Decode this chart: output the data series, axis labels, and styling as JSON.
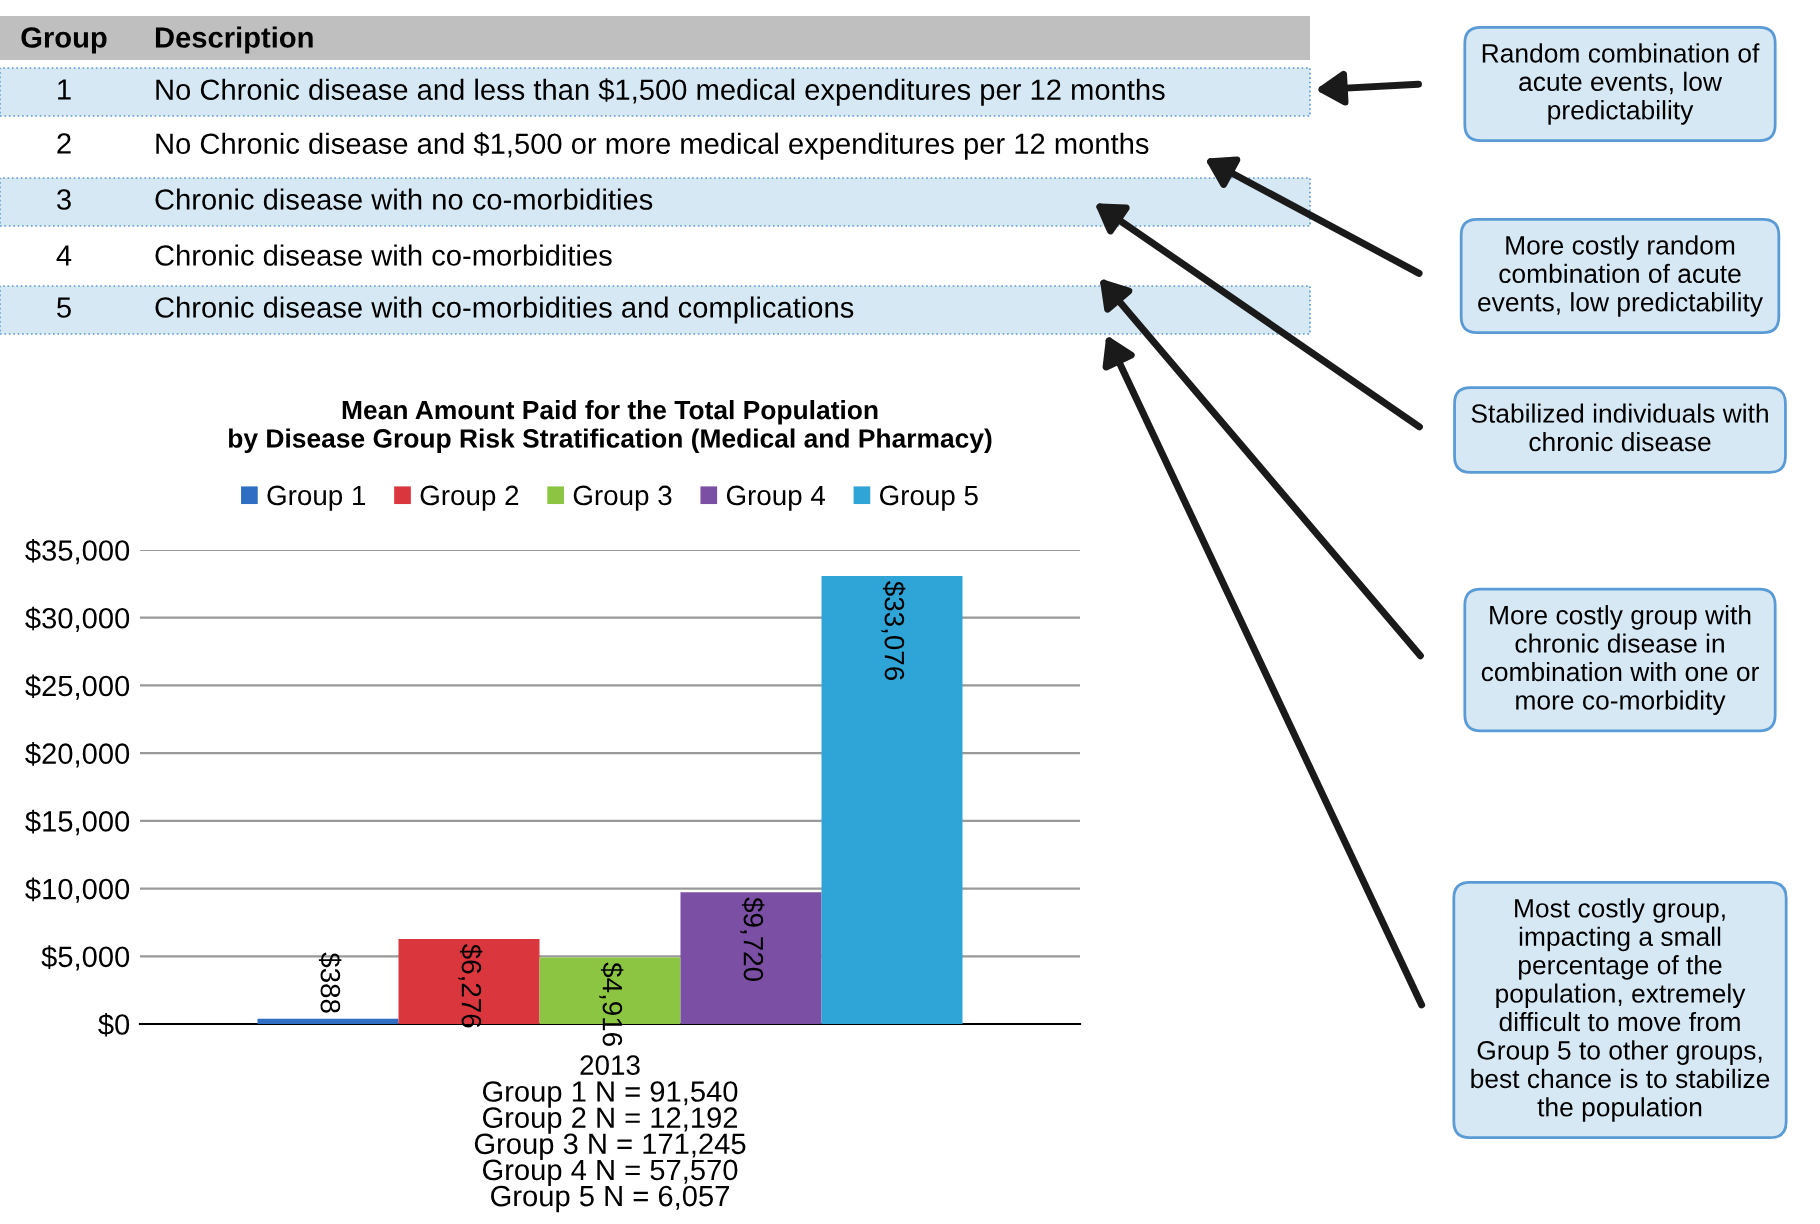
{
  "chart_data": {
    "type": "bar",
    "title": "Mean Amount Paid for the Total Population\nby Disease Group Risk Stratification (Medical and Pharmacy)",
    "categories": [
      "2013"
    ],
    "xlabel": "Group 1 N = 91,540\nGroup 2 N = 12,192\nGroup 3 N = 171,245\nGroup 4 N = 57,570\nGroup 5 N = 6,057",
    "series": [
      {
        "name": "Group 1",
        "color": "#2e6fc4",
        "values": [
          388
        ],
        "value_labels": [
          "$388"
        ]
      },
      {
        "name": "Group 2",
        "color": "#d9363e",
        "values": [
          6276
        ],
        "value_labels": [
          "$6,276"
        ]
      },
      {
        "name": "Group 3",
        "color": "#8cc541",
        "values": [
          4916
        ],
        "value_labels": [
          "$4,916"
        ]
      },
      {
        "name": "Group 4",
        "color": "#7b4fa3",
        "values": [
          9720
        ],
        "value_labels": [
          "$9,720"
        ]
      },
      {
        "name": "Group 5",
        "color": "#2ea5d6",
        "values": [
          33076
        ],
        "value_labels": [
          "$33,076"
        ]
      }
    ],
    "ylim": [
      0,
      35000
    ],
    "yticks": [
      {
        "value": 0,
        "label": "$0"
      },
      {
        "value": 5000,
        "label": "$5,000"
      },
      {
        "value": 10000,
        "label": "$10,000"
      },
      {
        "value": 15000,
        "label": "$15,000"
      },
      {
        "value": 20000,
        "label": "$20,000"
      },
      {
        "value": 25000,
        "label": "$25,000"
      },
      {
        "value": 30000,
        "label": "$30,000"
      },
      {
        "value": 35000,
        "label": "$35,000"
      }
    ],
    "grid": "y",
    "legend": "top",
    "annotations": [
      "Group",
      "Description",
      "1",
      "No Chronic disease and less than $1,500 medical expenditures per 12 months",
      "2",
      "No Chronic disease and $1,500 or more medical expenditures per 12 months",
      "3",
      "Chronic disease with no co-morbidities",
      "4",
      "Chronic disease with co-morbidities",
      "5",
      "Chronic disease with co-morbidities and complications",
      "Random combination of\nacute events, low\npredictability",
      "More costly random\ncombination of acute\nevents, low predictability",
      "Stabilized individuals with\nchronic disease",
      "More costly group with\nchronic disease in\ncombination with one or\nmore co-morbidity",
      "Most costly group,\nimpacting a small\npercentage of the\npopulation, extremely\ndifficult to move from\nGroup 5 to other groups,\nbest chance is to stabilize\nthe population"
    ]
  }
}
